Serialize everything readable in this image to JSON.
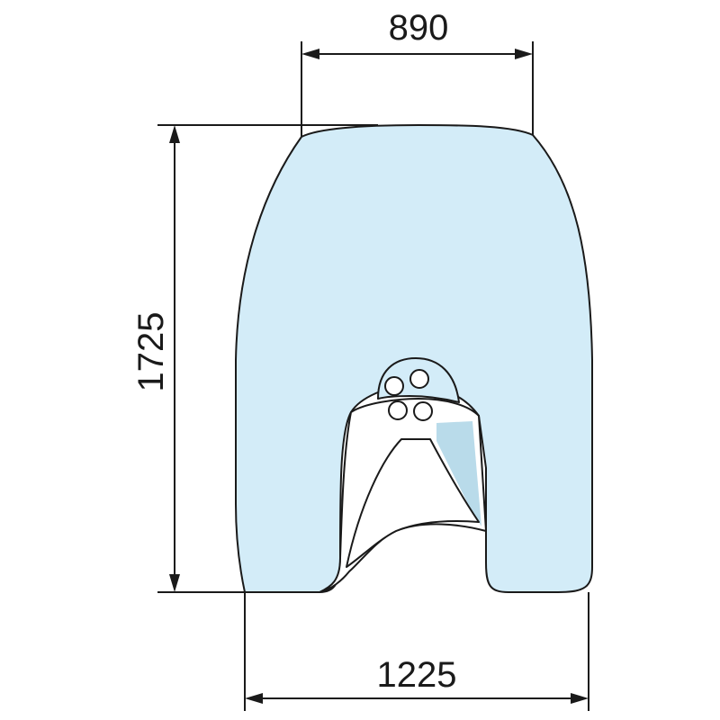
{
  "drawing": {
    "dimensions": {
      "top_width": "890",
      "height": "1725",
      "bottom_width": "1225"
    },
    "colors": {
      "glass_fill": "#d3ecf8",
      "tint_fill": "#b9dbea",
      "outline": "#1a1a1a",
      "background": "#ffffff"
    },
    "icons": [
      "circle-hole",
      "circle-hole",
      "circle-hole",
      "circle-hole"
    ]
  }
}
